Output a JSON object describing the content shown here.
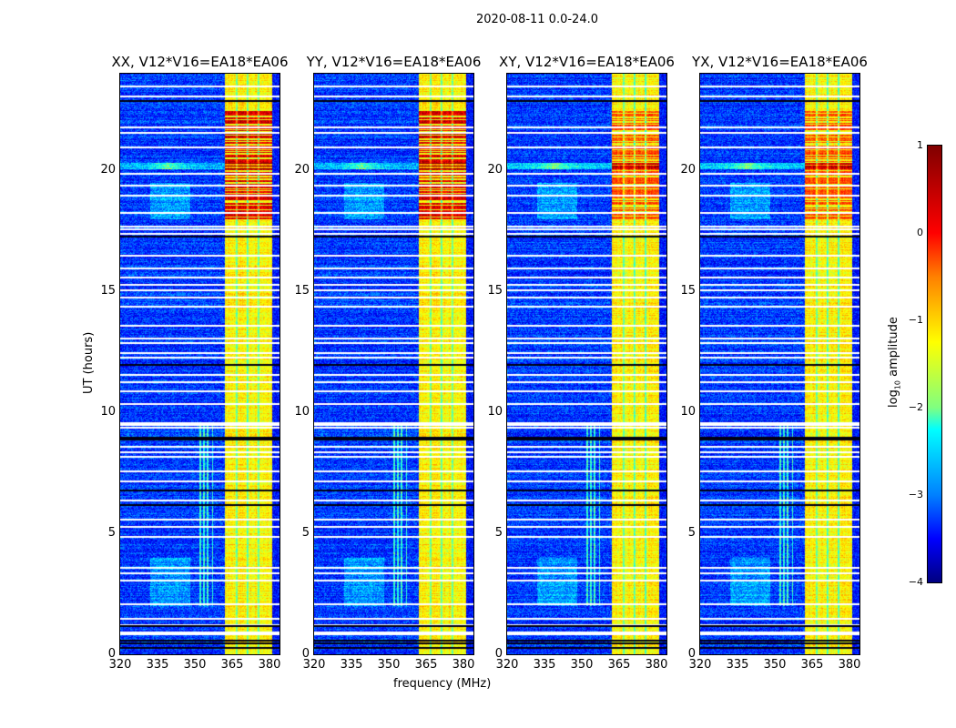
{
  "chart_data": {
    "type": "heatmap",
    "title": "2020-08-11 0.0-24.0",
    "xlabel": "frequency (MHz)",
    "ylabel": "UT (hours)",
    "xlim": [
      320,
      384
    ],
    "ylim": [
      0,
      24
    ],
    "xticks": [
      "320",
      "335",
      "350",
      "365",
      "380"
    ],
    "xtick_values": [
      320,
      335,
      350,
      365,
      380
    ],
    "yticks": [
      "0",
      "5",
      "10",
      "15",
      "20"
    ],
    "ytick_values": [
      0,
      5,
      10,
      15,
      20
    ],
    "panels": [
      {
        "title": "XX, V12*V16=EA18*EA06",
        "red_strength": 1.0
      },
      {
        "title": "YY, V12*V16=EA18*EA06",
        "red_strength": 1.0
      },
      {
        "title": "XY, V12*V16=EA18*EA06",
        "red_strength": 0.6
      },
      {
        "title": "YX, V12*V16=EA18*EA06",
        "red_strength": 0.6
      }
    ],
    "features": {
      "background_log_amp": -3.3,
      "bright_band_mhz": [
        362,
        381
      ],
      "bright_band_log_amp": -1.2,
      "band_gap_lines_mhz": [
        366.5,
        371,
        375.5
      ],
      "strong_rfi_hours": [
        18.0,
        22.5
      ],
      "spike_row_hour": 20.2,
      "spike_freq_mhz": 339,
      "flagged_white_hours": [
        0.85,
        0.95,
        1.25,
        1.5,
        2.1,
        3.1,
        3.4,
        3.6,
        4.9,
        5.3,
        5.6,
        6.4,
        7.2,
        7.6,
        8.2,
        8.4,
        8.6,
        9.4,
        9.5,
        9.6,
        10.4,
        10.9,
        11.3,
        11.6,
        12.3,
        12.5,
        12.9,
        13.1,
        13.6,
        14.4,
        14.8,
        15.1,
        15.3,
        15.6,
        16.0,
        16.5,
        17.4,
        17.6,
        17.7,
        18.3,
        19.0,
        19.4,
        19.9,
        21.0,
        21.6,
        21.8,
        23.1,
        23.5
      ],
      "flagged_black_hours": [
        0.3,
        0.5,
        0.6,
        1.2,
        6.2,
        6.8,
        8.9,
        9.0,
        12.0,
        17.3,
        22.9
      ],
      "vertical_rfi_mhz": [
        352,
        353.5,
        355,
        357
      ],
      "vertical_rfi_hours": [
        2,
        9.5
      ]
    },
    "colorbar": {
      "label": "log10 amplitude",
      "label_main": "log",
      "label_sub": "10",
      "label_rest": " amplitude",
      "ticks": [
        "1",
        "0",
        "−1",
        "−2",
        "−3",
        "−4"
      ],
      "tick_values": [
        1,
        0,
        -1,
        -2,
        -3,
        -4
      ],
      "range": [
        -4,
        1
      ],
      "colormap": "jet"
    }
  }
}
